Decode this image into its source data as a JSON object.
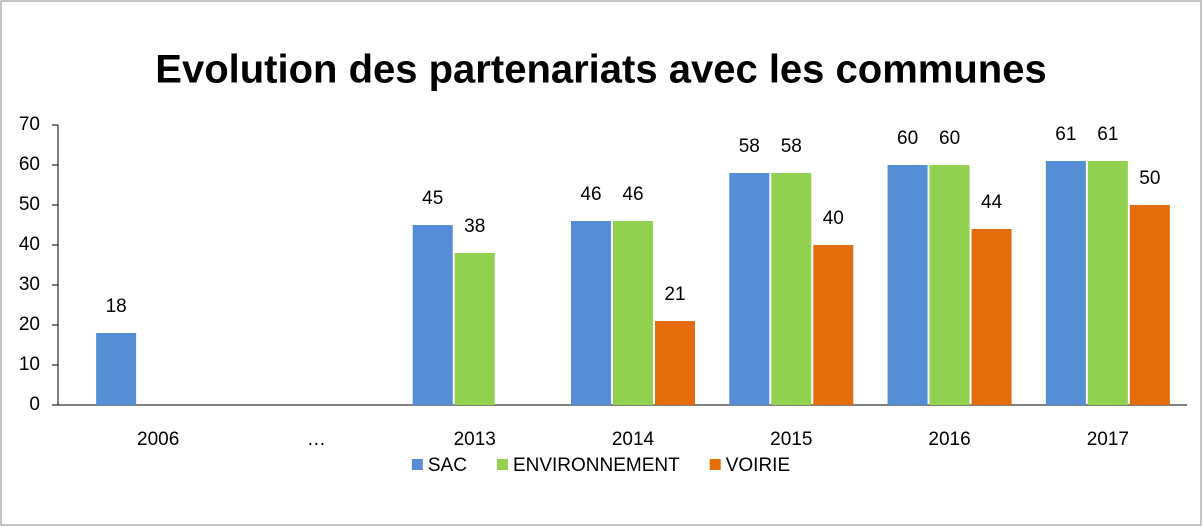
{
  "chart_data": {
    "type": "bar",
    "title": "Evolution des partenariats avec les communes",
    "categories": [
      "2006",
      "…",
      "2013",
      "2014",
      "2015",
      "2016",
      "2017"
    ],
    "series": [
      {
        "name": "SAC",
        "color": "#558ed5",
        "values": [
          18,
          null,
          45,
          46,
          58,
          60,
          61
        ]
      },
      {
        "name": "ENVIRONNEMENT",
        "color": "#92d050",
        "values": [
          null,
          null,
          38,
          46,
          58,
          60,
          61
        ]
      },
      {
        "name": "VOIRIE",
        "color": "#e46c0a",
        "values": [
          null,
          null,
          null,
          21,
          40,
          44,
          50
        ]
      }
    ],
    "ylim": [
      0,
      70
    ],
    "yticks": [
      0,
      10,
      20,
      30,
      40,
      50,
      60,
      70
    ],
    "grid": false,
    "legend": "bottom"
  }
}
